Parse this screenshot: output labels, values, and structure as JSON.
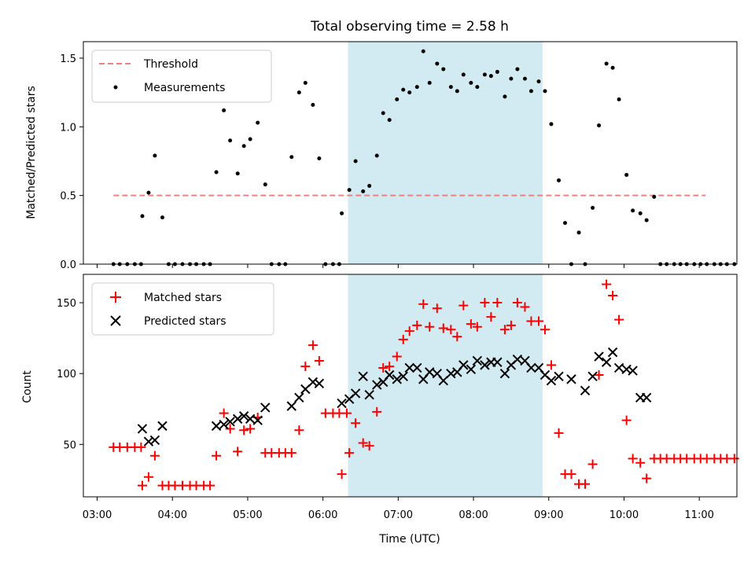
{
  "title": "Total observing time = 2.58 h",
  "colors": {
    "threshold": "#f08080",
    "measurement": "#000000",
    "matched": "#ff0000",
    "predicted": "#000000",
    "span": "#add8e6"
  },
  "chart_data": [
    {
      "type": "scatter",
      "panel": "top",
      "title": "Total observing time = 2.58 h",
      "xlabel": "",
      "ylabel": "Matched/Predicted stars",
      "ylim": [
        0,
        1.62
      ],
      "yticks": [
        0.0,
        0.5,
        1.0,
        1.5
      ],
      "ytick_labels": [
        "0.0",
        "0.5",
        "1.0",
        "1.5"
      ],
      "highlight_span": [
        "06:20",
        "08:55"
      ],
      "legend_position": "top-left",
      "legend": [
        {
          "label": "Threshold",
          "marker": "dashed-line"
        },
        {
          "label": "Measurements",
          "marker": "dot"
        }
      ],
      "threshold": {
        "name": "Threshold",
        "y": 0.5,
        "x_range": [
          "03:13",
          "11:05"
        ]
      },
      "series": [
        {
          "name": "Measurements",
          "points": [
            [
              "03:13",
              0
            ],
            [
              "03:18",
              0
            ],
            [
              "03:24",
              0
            ],
            [
              "03:30",
              0
            ],
            [
              "03:35",
              0
            ],
            [
              "03:36",
              0.35
            ],
            [
              "03:41",
              0.52
            ],
            [
              "03:46",
              0.79
            ],
            [
              "03:52",
              0.34
            ],
            [
              "03:57",
              0
            ],
            [
              "04:02",
              0
            ],
            [
              "04:08",
              0
            ],
            [
              "04:14",
              0
            ],
            [
              "04:19",
              0
            ],
            [
              "04:25",
              0
            ],
            [
              "04:30",
              0
            ],
            [
              "04:35",
              0.67
            ],
            [
              "04:41",
              1.12
            ],
            [
              "04:46",
              0.9
            ],
            [
              "04:52",
              0.66
            ],
            [
              "04:57",
              0.86
            ],
            [
              "05:02",
              0.91
            ],
            [
              "05:08",
              1.03
            ],
            [
              "05:14",
              0.58
            ],
            [
              "05:19",
              0
            ],
            [
              "05:25",
              0
            ],
            [
              "05:30",
              0
            ],
            [
              "05:35",
              0.78
            ],
            [
              "05:41",
              1.25
            ],
            [
              "05:46",
              1.32
            ],
            [
              "05:52",
              1.16
            ],
            [
              "05:57",
              0.77
            ],
            [
              "06:02",
              0
            ],
            [
              "06:08",
              0
            ],
            [
              "06:13",
              0
            ],
            [
              "06:15",
              0.37
            ],
            [
              "06:21",
              0.54
            ],
            [
              "06:26",
              0.75
            ],
            [
              "06:32",
              0.53
            ],
            [
              "06:37",
              0.57
            ],
            [
              "06:43",
              0.79
            ],
            [
              "06:48",
              1.1
            ],
            [
              "06:53",
              1.05
            ],
            [
              "06:59",
              1.2
            ],
            [
              "07:04",
              1.27
            ],
            [
              "07:09",
              1.25
            ],
            [
              "07:15",
              1.29
            ],
            [
              "07:20",
              1.55
            ],
            [
              "07:25",
              1.32
            ],
            [
              "07:31",
              1.46
            ],
            [
              "07:36",
              1.42
            ],
            [
              "07:42",
              1.29
            ],
            [
              "07:47",
              1.26
            ],
            [
              "07:52",
              1.38
            ],
            [
              "07:58",
              1.32
            ],
            [
              "08:03",
              1.29
            ],
            [
              "08:09",
              1.38
            ],
            [
              "08:14",
              1.37
            ],
            [
              "08:19",
              1.4
            ],
            [
              "08:25",
              1.22
            ],
            [
              "08:30",
              1.35
            ],
            [
              "08:35",
              1.42
            ],
            [
              "08:41",
              1.35
            ],
            [
              "08:46",
              1.26
            ],
            [
              "08:52",
              1.33
            ],
            [
              "08:57",
              1.26
            ],
            [
              "09:02",
              1.02
            ],
            [
              "09:08",
              0.61
            ],
            [
              "09:13",
              0.3
            ],
            [
              "09:18",
              0
            ],
            [
              "09:24",
              0.23
            ],
            [
              "09:29",
              0
            ],
            [
              "09:35",
              0.41
            ],
            [
              "09:40",
              1.01
            ],
            [
              "09:46",
              1.46
            ],
            [
              "09:51",
              1.43
            ],
            [
              "09:56",
              1.2
            ],
            [
              "10:02",
              0.65
            ],
            [
              "10:07",
              0.39
            ],
            [
              "10:13",
              0.37
            ],
            [
              "10:18",
              0.32
            ],
            [
              "10:24",
              0.49
            ],
            [
              "10:29",
              0
            ],
            [
              "10:34",
              0
            ],
            [
              "10:40",
              0
            ],
            [
              "10:45",
              0
            ],
            [
              "10:50",
              0
            ],
            [
              "10:56",
              0
            ],
            [
              "11:01",
              0
            ],
            [
              "11:06",
              0
            ],
            [
              "11:12",
              0
            ],
            [
              "11:17",
              0
            ],
            [
              "11:22",
              0
            ],
            [
              "11:28",
              0
            ]
          ]
        }
      ]
    },
    {
      "type": "scatter",
      "panel": "bottom",
      "xlabel": "Time (UTC)",
      "ylabel": "Count",
      "ylim": [
        13,
        170
      ],
      "yticks": [
        50,
        100,
        150
      ],
      "ytick_labels": [
        "50",
        "100",
        "150"
      ],
      "xticks": [
        "03:00",
        "04:00",
        "05:00",
        "06:00",
        "07:00",
        "08:00",
        "09:00",
        "10:00",
        "11:00"
      ],
      "xtick_labels": [
        "03:00",
        "04:00",
        "05:00",
        "06:00",
        "07:00",
        "08:00",
        "09:00",
        "10:00",
        "11:00"
      ],
      "xlim": [
        "02:49",
        "11:30"
      ],
      "highlight_span": [
        "06:20",
        "08:55"
      ],
      "legend_position": "top-left",
      "legend": [
        {
          "label": "Matched stars",
          "marker": "plus"
        },
        {
          "label": "Predicted stars",
          "marker": "x"
        }
      ],
      "series": [
        {
          "name": "Matched stars",
          "points": [
            [
              "03:13",
              48
            ],
            [
              "03:18",
              48
            ],
            [
              "03:24",
              48
            ],
            [
              "03:30",
              48
            ],
            [
              "03:35",
              48
            ],
            [
              "03:36",
              21
            ],
            [
              "03:41",
              27
            ],
            [
              "03:46",
              42
            ],
            [
              "03:52",
              21
            ],
            [
              "03:57",
              21
            ],
            [
              "04:02",
              21
            ],
            [
              "04:08",
              21
            ],
            [
              "04:14",
              21
            ],
            [
              "04:19",
              21
            ],
            [
              "04:25",
              21
            ],
            [
              "04:30",
              21
            ],
            [
              "04:35",
              42
            ],
            [
              "04:41",
              72
            ],
            [
              "04:46",
              61
            ],
            [
              "04:52",
              45
            ],
            [
              "04:57",
              60
            ],
            [
              "05:02",
              61
            ],
            [
              "05:08",
              69
            ],
            [
              "05:14",
              44
            ],
            [
              "05:19",
              44
            ],
            [
              "05:25",
              44
            ],
            [
              "05:30",
              44
            ],
            [
              "05:35",
              44
            ],
            [
              "05:41",
              60
            ],
            [
              "05:46",
              105
            ],
            [
              "05:52",
              120
            ],
            [
              "05:57",
              109
            ],
            [
              "06:02",
              72
            ],
            [
              "06:08",
              72
            ],
            [
              "06:13",
              72
            ],
            [
              "06:19",
              72
            ],
            [
              "06:15",
              29
            ],
            [
              "06:21",
              44
            ],
            [
              "06:26",
              65
            ],
            [
              "06:32",
              51
            ],
            [
              "06:37",
              49
            ],
            [
              "06:43",
              73
            ],
            [
              "06:48",
              104
            ],
            [
              "06:53",
              105
            ],
            [
              "06:59",
              112
            ],
            [
              "07:04",
              124
            ],
            [
              "07:09",
              130
            ],
            [
              "07:15",
              134
            ],
            [
              "07:20",
              149
            ],
            [
              "07:25",
              133
            ],
            [
              "07:31",
              146
            ],
            [
              "07:36",
              132
            ],
            [
              "07:42",
              131
            ],
            [
              "07:47",
              126
            ],
            [
              "07:52",
              148
            ],
            [
              "07:58",
              135
            ],
            [
              "08:03",
              133
            ],
            [
              "08:09",
              150
            ],
            [
              "08:14",
              140
            ],
            [
              "08:19",
              150
            ],
            [
              "08:25",
              131
            ],
            [
              "08:30",
              134
            ],
            [
              "08:35",
              150
            ],
            [
              "08:41",
              147
            ],
            [
              "08:46",
              137
            ],
            [
              "08:52",
              137
            ],
            [
              "08:57",
              131
            ],
            [
              "09:02",
              106
            ],
            [
              "09:08",
              58
            ],
            [
              "09:13",
              29
            ],
            [
              "09:18",
              29
            ],
            [
              "09:24",
              22
            ],
            [
              "09:29",
              22
            ],
            [
              "09:35",
              36
            ],
            [
              "09:40",
              99
            ],
            [
              "09:46",
              163
            ],
            [
              "09:51",
              155
            ],
            [
              "09:56",
              138
            ],
            [
              "10:02",
              67
            ],
            [
              "10:07",
              40
            ],
            [
              "10:13",
              37
            ],
            [
              "10:18",
              26
            ],
            [
              "10:24",
              40
            ],
            [
              "10:29",
              40
            ],
            [
              "10:34",
              40
            ],
            [
              "10:40",
              40
            ],
            [
              "10:45",
              40
            ],
            [
              "10:50",
              40
            ],
            [
              "10:56",
              40
            ],
            [
              "11:01",
              40
            ],
            [
              "11:06",
              40
            ],
            [
              "11:12",
              40
            ],
            [
              "11:17",
              40
            ],
            [
              "11:22",
              40
            ],
            [
              "11:28",
              40
            ]
          ]
        },
        {
          "name": "Predicted stars",
          "points": [
            [
              "03:36",
              61
            ],
            [
              "03:41",
              52
            ],
            [
              "03:46",
              53
            ],
            [
              "03:52",
              63
            ],
            [
              "04:35",
              63
            ],
            [
              "04:41",
              64
            ],
            [
              "04:46",
              66
            ],
            [
              "04:52",
              68
            ],
            [
              "04:57",
              70
            ],
            [
              "05:02",
              68
            ],
            [
              "05:08",
              67
            ],
            [
              "05:14",
              76
            ],
            [
              "05:35",
              77
            ],
            [
              "05:41",
              83
            ],
            [
              "05:46",
              89
            ],
            [
              "05:52",
              94
            ],
            [
              "05:57",
              93
            ],
            [
              "06:15",
              79
            ],
            [
              "06:21",
              82
            ],
            [
              "06:26",
              86
            ],
            [
              "06:32",
              98
            ],
            [
              "06:37",
              85
            ],
            [
              "06:43",
              92
            ],
            [
              "06:48",
              94
            ],
            [
              "06:53",
              99
            ],
            [
              "06:59",
              96
            ],
            [
              "07:04",
              98
            ],
            [
              "07:09",
              104
            ],
            [
              "07:15",
              104
            ],
            [
              "07:20",
              96
            ],
            [
              "07:25",
              101
            ],
            [
              "07:31",
              100
            ],
            [
              "07:36",
              95
            ],
            [
              "07:42",
              100
            ],
            [
              "07:47",
              101
            ],
            [
              "07:52",
              106
            ],
            [
              "07:58",
              103
            ],
            [
              "08:03",
              109
            ],
            [
              "08:09",
              106
            ],
            [
              "08:14",
              108
            ],
            [
              "08:19",
              108
            ],
            [
              "08:25",
              100
            ],
            [
              "08:30",
              106
            ],
            [
              "08:35",
              110
            ],
            [
              "08:41",
              109
            ],
            [
              "08:46",
              104
            ],
            [
              "08:52",
              104
            ],
            [
              "08:57",
              99
            ],
            [
              "09:02",
              95
            ],
            [
              "09:08",
              98
            ],
            [
              "09:18",
              96
            ],
            [
              "09:29",
              88
            ],
            [
              "09:35",
              98
            ],
            [
              "09:40",
              112
            ],
            [
              "09:46",
              108
            ],
            [
              "09:51",
              115
            ],
            [
              "09:56",
              104
            ],
            [
              "10:02",
              103
            ],
            [
              "10:07",
              102
            ],
            [
              "10:13",
              83
            ],
            [
              "10:18",
              83
            ]
          ]
        }
      ]
    }
  ]
}
